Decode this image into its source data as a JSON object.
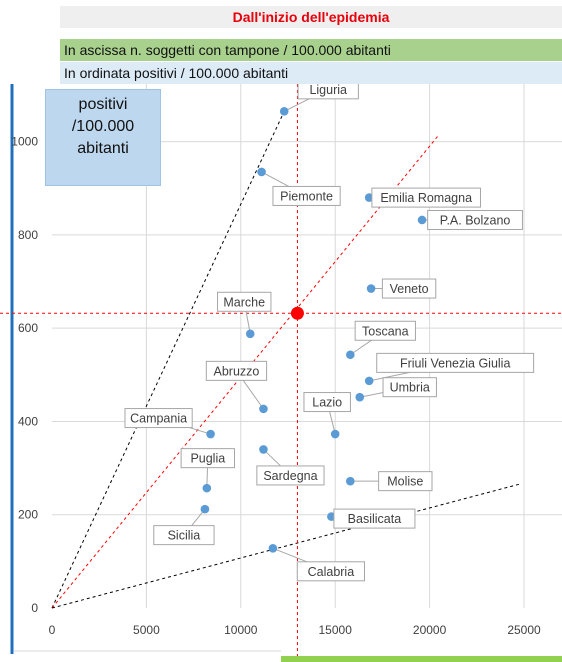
{
  "header": {
    "title": "Dall'inizio dell'epidemia",
    "x_desc": "In ascissa n. soggetti con tampone / 100.000 abitanti",
    "y_desc": "In ordinata positivi / 100.000 abitanti"
  },
  "y_box_label": "positivi\n/100.000\nabitanti",
  "colors": {
    "points": "#5b9bd5",
    "axis": "#1f6fbf",
    "reference": "#ff0000",
    "title": "#e8000b"
  },
  "chart_data": {
    "type": "scatter",
    "title": "Dall'inizio dell'epidemia",
    "xlim": [
      0,
      25000
    ],
    "ylim": [
      0,
      1100
    ],
    "x_ticks": [
      0,
      5000,
      10000,
      15000,
      20000,
      25000
    ],
    "y_ticks": [
      0,
      200,
      400,
      600,
      800,
      1000
    ],
    "grid": true,
    "points": [
      {
        "name": "Liguria",
        "x": 12300,
        "y": 1065
      },
      {
        "name": "Piemonte",
        "x": 11100,
        "y": 935
      },
      {
        "name": "Emilia Romagna",
        "x": 16800,
        "y": 880
      },
      {
        "name": "P.A. Bolzano",
        "x": 19600,
        "y": 832
      },
      {
        "name": "Veneto",
        "x": 16900,
        "y": 685
      },
      {
        "name": "Marche",
        "x": 10500,
        "y": 588
      },
      {
        "name": "Toscana",
        "x": 15800,
        "y": 543
      },
      {
        "name": "Friuli Venezia Giulia",
        "x": 16800,
        "y": 487
      },
      {
        "name": "Umbria",
        "x": 16300,
        "y": 452
      },
      {
        "name": "Abruzzo",
        "x": 11200,
        "y": 427
      },
      {
        "name": "Lazio",
        "x": 15000,
        "y": 373
      },
      {
        "name": "Campania",
        "x": 8400,
        "y": 373
      },
      {
        "name": "Sardegna",
        "x": 11200,
        "y": 340
      },
      {
        "name": "Molise",
        "x": 15800,
        "y": 272
      },
      {
        "name": "Puglia",
        "x": 8200,
        "y": 257
      },
      {
        "name": "Sicilia",
        "x": 8100,
        "y": 212
      },
      {
        "name": "Basilicata",
        "x": 14800,
        "y": 196
      },
      {
        "name": "Calabria",
        "x": 11700,
        "y": 128
      }
    ],
    "reference_point": {
      "x": 13000,
      "y": 632
    },
    "reference_lines": [
      {
        "style": "dashed-black",
        "from": [
          0,
          0
        ],
        "to": [
          12300,
          1065
        ]
      },
      {
        "style": "dashed-red",
        "from": [
          0,
          0
        ],
        "to": [
          20500,
          1015
        ]
      },
      {
        "style": "dashed-black",
        "from": [
          0,
          0
        ],
        "to": [
          24800,
          266
        ]
      }
    ]
  }
}
